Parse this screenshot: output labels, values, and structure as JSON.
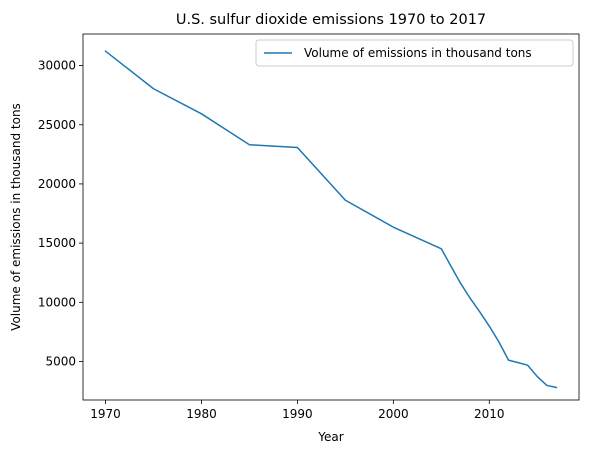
{
  "chart_data": {
    "type": "line",
    "title": "U.S. sulfur dioxide emissions 1970 to 2017",
    "xlabel": "Year",
    "ylabel": "Volume of emissions in thousand tons",
    "xlim": [
      1967.65,
      2019.35
    ],
    "ylim": [
      1740,
      32670
    ],
    "xticks": [
      1970,
      1980,
      1990,
      2000,
      2010
    ],
    "yticks": [
      5000,
      10000,
      15000,
      20000,
      25000,
      30000
    ],
    "grid": false,
    "legend_position": "top-right",
    "series_color": "#1f77b4",
    "series": [
      {
        "name": "Volume of emissions in thousand tons",
        "x": [
          1970,
          1975,
          1980,
          1985,
          1990,
          1995,
          2000,
          2005,
          2006,
          2007,
          2008,
          2009,
          2010,
          2011,
          2012,
          2013,
          2014,
          2015,
          2016,
          2017
        ],
        "y": [
          31218,
          28043,
          25925,
          23307,
          23076,
          18619,
          16347,
          14521,
          13050,
          11610,
          10340,
          9190,
          7980,
          6650,
          5110,
          4900,
          4680,
          3720,
          2970,
          2800
        ]
      }
    ]
  }
}
